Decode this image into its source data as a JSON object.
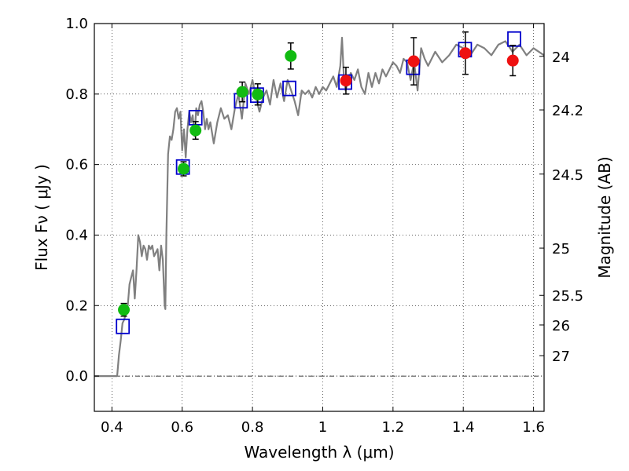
{
  "chart_data": {
    "type": "scatter",
    "title": "",
    "xlabel": "Wavelength  λ (μm)",
    "ylabel": "Flux  Fν  ( μJy )",
    "ylabel_right": "Magnitude (AB)",
    "xlim": [
      0.35,
      1.63
    ],
    "ylim": [
      -0.1,
      1.0
    ],
    "grid": true,
    "x_ticks": [
      0.4,
      0.6,
      0.8,
      1.0,
      1.2,
      1.4,
      1.6
    ],
    "x_tick_labels": [
      "0.4",
      "0.6",
      "0.8",
      "1",
      "1.2",
      "1.4",
      "1.6"
    ],
    "y_ticks": [
      0.0,
      0.2,
      0.4,
      0.6,
      0.8,
      1.0
    ],
    "y_tick_labels": [
      "0.0",
      "0.2",
      "0.4",
      "0.6",
      "0.8",
      "1.0"
    ],
    "right_ticks": [
      {
        "label": "24",
        "flux": 0.907
      },
      {
        "label": "24.2",
        "flux": 0.755
      },
      {
        "label": "24.5",
        "flux": 0.573
      },
      {
        "label": "25",
        "flux": 0.363
      },
      {
        "label": "25.5",
        "flux": 0.229
      },
      {
        "label": "26",
        "flux": 0.145
      },
      {
        "label": "27",
        "flux": 0.058
      }
    ],
    "colors": {
      "model": "#808080",
      "green": "#11bb11",
      "red": "#ee1111",
      "box": "#0000cc",
      "errorbar": "#000000"
    },
    "model_spectrum": {
      "x": [
        0.35,
        0.41,
        0.415,
        0.42,
        0.425,
        0.43,
        0.435,
        0.44,
        0.445,
        0.45,
        0.455,
        0.46,
        0.465,
        0.47,
        0.475,
        0.48,
        0.485,
        0.49,
        0.495,
        0.5,
        0.505,
        0.51,
        0.515,
        0.52,
        0.525,
        0.53,
        0.535,
        0.54,
        0.545,
        0.55,
        0.552,
        0.555,
        0.56,
        0.565,
        0.57,
        0.575,
        0.58,
        0.585,
        0.59,
        0.595,
        0.6,
        0.605,
        0.61,
        0.615,
        0.62,
        0.625,
        0.63,
        0.635,
        0.64,
        0.645,
        0.65,
        0.655,
        0.66,
        0.665,
        0.67,
        0.675,
        0.68,
        0.69,
        0.7,
        0.71,
        0.72,
        0.73,
        0.74,
        0.75,
        0.76,
        0.77,
        0.78,
        0.79,
        0.8,
        0.81,
        0.82,
        0.83,
        0.84,
        0.85,
        0.86,
        0.87,
        0.88,
        0.89,
        0.9,
        0.91,
        0.92,
        0.93,
        0.94,
        0.95,
        0.96,
        0.97,
        0.98,
        0.99,
        1.0,
        1.01,
        1.02,
        1.03,
        1.04,
        1.05,
        1.055,
        1.06,
        1.065,
        1.07,
        1.08,
        1.09,
        1.1,
        1.11,
        1.12,
        1.13,
        1.14,
        1.15,
        1.16,
        1.17,
        1.18,
        1.19,
        1.2,
        1.21,
        1.22,
        1.23,
        1.24,
        1.25,
        1.26,
        1.27,
        1.28,
        1.29,
        1.3,
        1.32,
        1.34,
        1.36,
        1.38,
        1.4,
        1.42,
        1.44,
        1.46,
        1.48,
        1.5,
        1.52,
        1.54,
        1.56,
        1.58,
        1.6,
        1.63
      ],
      "y": [
        0.0,
        0.0,
        0.0,
        0.06,
        0.1,
        0.15,
        0.16,
        0.18,
        0.2,
        0.26,
        0.28,
        0.3,
        0.22,
        0.3,
        0.4,
        0.38,
        0.34,
        0.37,
        0.36,
        0.33,
        0.37,
        0.36,
        0.37,
        0.34,
        0.35,
        0.36,
        0.3,
        0.37,
        0.33,
        0.2,
        0.19,
        0.4,
        0.63,
        0.68,
        0.67,
        0.7,
        0.75,
        0.76,
        0.73,
        0.75,
        0.64,
        0.7,
        0.62,
        0.7,
        0.75,
        0.72,
        0.74,
        0.68,
        0.76,
        0.74,
        0.77,
        0.78,
        0.75,
        0.7,
        0.73,
        0.7,
        0.72,
        0.66,
        0.72,
        0.76,
        0.73,
        0.74,
        0.7,
        0.76,
        0.8,
        0.73,
        0.83,
        0.8,
        0.84,
        0.79,
        0.75,
        0.79,
        0.81,
        0.77,
        0.84,
        0.79,
        0.83,
        0.78,
        0.84,
        0.81,
        0.78,
        0.74,
        0.81,
        0.8,
        0.81,
        0.79,
        0.82,
        0.8,
        0.82,
        0.81,
        0.83,
        0.85,
        0.82,
        0.88,
        0.96,
        0.85,
        0.81,
        0.83,
        0.86,
        0.84,
        0.87,
        0.82,
        0.8,
        0.86,
        0.82,
        0.86,
        0.83,
        0.87,
        0.85,
        0.87,
        0.89,
        0.88,
        0.86,
        0.9,
        0.89,
        0.84,
        0.89,
        0.81,
        0.93,
        0.9,
        0.88,
        0.92,
        0.89,
        0.91,
        0.94,
        0.93,
        0.91,
        0.94,
        0.93,
        0.91,
        0.94,
        0.95,
        0.92,
        0.94,
        0.91,
        0.93,
        0.91
      ]
    },
    "green_points": [
      {
        "x": 0.434,
        "y": 0.188,
        "err": 0.018
      },
      {
        "x": 0.604,
        "y": 0.588,
        "err": 0.02
      },
      {
        "x": 0.638,
        "y": 0.697,
        "err": 0.025
      },
      {
        "x": 0.771,
        "y": 0.806,
        "err": 0.028
      },
      {
        "x": 0.815,
        "y": 0.799,
        "err": 0.03
      },
      {
        "x": 0.909,
        "y": 0.908,
        "err": 0.037
      }
    ],
    "red_points": [
      {
        "x": 1.066,
        "y": 0.838,
        "err": 0.038
      },
      {
        "x": 1.259,
        "y": 0.893,
        "err": 0.067
      },
      {
        "x": 1.406,
        "y": 0.916,
        "err": 0.06
      },
      {
        "x": 1.541,
        "y": 0.895,
        "err": 0.043
      }
    ],
    "box_points": [
      {
        "x": 0.431,
        "y": 0.141
      },
      {
        "x": 0.602,
        "y": 0.593
      },
      {
        "x": 0.638,
        "y": 0.733
      },
      {
        "x": 0.767,
        "y": 0.781
      },
      {
        "x": 0.813,
        "y": 0.797
      },
      {
        "x": 0.905,
        "y": 0.816
      },
      {
        "x": 1.064,
        "y": 0.834
      },
      {
        "x": 1.257,
        "y": 0.876
      },
      {
        "x": 1.405,
        "y": 0.926
      },
      {
        "x": 1.545,
        "y": 0.956
      }
    ]
  }
}
